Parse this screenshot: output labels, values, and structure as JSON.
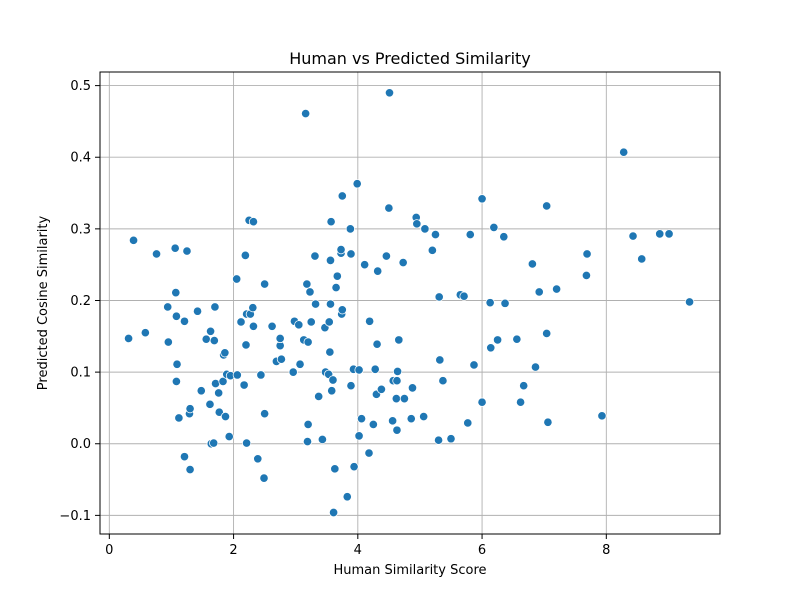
{
  "chart_data": {
    "type": "scatter",
    "title": "Human vs Predicted Similarity",
    "xlabel": "Human Similarity Score",
    "ylabel": "Predicted Cosine Similarity",
    "xlim": [
      -0.15,
      9.83
    ],
    "ylim": [
      -0.126,
      0.519
    ],
    "xticks": [
      0,
      2,
      4,
      6,
      8
    ],
    "yticks": [
      -0.1,
      0.0,
      0.1,
      0.2,
      0.3,
      0.4,
      0.5
    ],
    "xtick_labels": [
      "0",
      "2",
      "4",
      "6",
      "8"
    ],
    "ytick_labels": [
      "−0.1",
      "0.0",
      "0.1",
      "0.2",
      "0.3",
      "0.4",
      "0.5"
    ],
    "grid": true,
    "point_color": "#1f77b4",
    "x": [
      0.31,
      0.39,
      0.58,
      0.76,
      0.94,
      0.95,
      1.06,
      1.07,
      1.08,
      1.08,
      1.09,
      1.12,
      1.21,
      1.21,
      1.25,
      1.29,
      1.3,
      1.3,
      1.42,
      1.48,
      1.56,
      1.62,
      1.63,
      1.64,
      1.68,
      1.69,
      1.7,
      1.71,
      1.76,
      1.77,
      1.83,
      1.84,
      1.86,
      1.87,
      1.89,
      1.93,
      1.95,
      2.05,
      2.06,
      2.12,
      2.17,
      2.19,
      2.2,
      2.21,
      2.21,
      2.25,
      2.27,
      2.31,
      2.32,
      2.32,
      2.39,
      2.44,
      2.49,
      2.5,
      2.5,
      2.62,
      2.69,
      2.75,
      2.75,
      2.77,
      2.96,
      2.98,
      3.05,
      3.07,
      3.13,
      3.16,
      3.18,
      3.19,
      3.2,
      3.2,
      3.23,
      3.25,
      3.31,
      3.32,
      3.37,
      3.43,
      3.47,
      3.48,
      3.53,
      3.54,
      3.55,
      3.56,
      3.56,
      3.57,
      3.58,
      3.6,
      3.61,
      3.63,
      3.65,
      3.67,
      3.73,
      3.73,
      3.74,
      3.75,
      3.75,
      3.83,
      3.88,
      3.89,
      3.89,
      3.93,
      3.94,
      3.99,
      4.02,
      4.02,
      4.06,
      4.11,
      4.18,
      4.19,
      4.25,
      4.28,
      4.3,
      4.31,
      4.32,
      4.38,
      4.46,
      4.5,
      4.51,
      4.56,
      4.57,
      4.62,
      4.63,
      4.63,
      4.64,
      4.66,
      4.73,
      4.75,
      4.86,
      4.88,
      4.94,
      4.95,
      5.06,
      5.08,
      5.2,
      5.25,
      5.3,
      5.31,
      5.32,
      5.37,
      5.5,
      5.65,
      5.71,
      5.77,
      5.81,
      5.87,
      6.0,
      6.0,
      6.13,
      6.14,
      6.19,
      6.25,
      6.35,
      6.37,
      6.56,
      6.62,
      6.67,
      6.81,
      6.86,
      6.92,
      7.04,
      7.04,
      7.06,
      7.2,
      7.68,
      7.69,
      7.93,
      8.28,
      8.43,
      8.57,
      8.86,
      9.01,
      9.34
    ],
    "y": [
      0.147,
      0.284,
      0.155,
      0.265,
      0.191,
      0.142,
      0.273,
      0.211,
      0.178,
      0.087,
      0.111,
      0.036,
      0.171,
      -0.018,
      0.269,
      0.042,
      0.049,
      -0.036,
      0.185,
      0.074,
      0.146,
      0.055,
      0.157,
      0.0,
      0.001,
      0.144,
      0.191,
      0.084,
      0.071,
      0.044,
      0.087,
      0.124,
      0.127,
      0.038,
      0.097,
      0.01,
      0.095,
      0.23,
      0.096,
      0.17,
      0.082,
      0.263,
      0.138,
      0.001,
      0.181,
      0.312,
      0.181,
      0.19,
      0.31,
      0.164,
      -0.021,
      0.096,
      -0.048,
      0.042,
      0.223,
      0.164,
      0.115,
      0.137,
      0.147,
      0.118,
      0.1,
      0.171,
      0.166,
      0.111,
      0.145,
      0.461,
      0.223,
      0.003,
      0.142,
      0.027,
      0.212,
      0.17,
      0.262,
      0.195,
      0.066,
      0.006,
      0.162,
      0.1,
      0.097,
      0.17,
      0.128,
      0.195,
      0.256,
      0.31,
      0.074,
      0.089,
      -0.096,
      -0.035,
      0.218,
      0.234,
      0.266,
      0.271,
      0.181,
      0.187,
      0.346,
      -0.074,
      0.3,
      0.081,
      0.265,
      0.104,
      -0.032,
      0.363,
      0.103,
      0.011,
      0.035,
      0.25,
      -0.013,
      0.171,
      0.027,
      0.104,
      0.069,
      0.139,
      0.241,
      0.076,
      0.262,
      0.329,
      0.49,
      0.032,
      0.088,
      0.063,
      0.088,
      0.019,
      0.101,
      0.145,
      0.253,
      0.063,
      0.035,
      0.078,
      0.316,
      0.307,
      0.038,
      0.3,
      0.27,
      0.292,
      0.005,
      0.205,
      0.117,
      0.088,
      0.007,
      0.208,
      0.206,
      0.029,
      0.292,
      0.11,
      0.342,
      0.058,
      0.197,
      0.134,
      0.302,
      0.145,
      0.289,
      0.196,
      0.146,
      0.058,
      0.081,
      0.251,
      0.107,
      0.212,
      0.332,
      0.154,
      0.03,
      0.216,
      0.235,
      0.265,
      0.039,
      0.407,
      0.29,
      0.258,
      0.293,
      0.293,
      0.198
    ]
  }
}
